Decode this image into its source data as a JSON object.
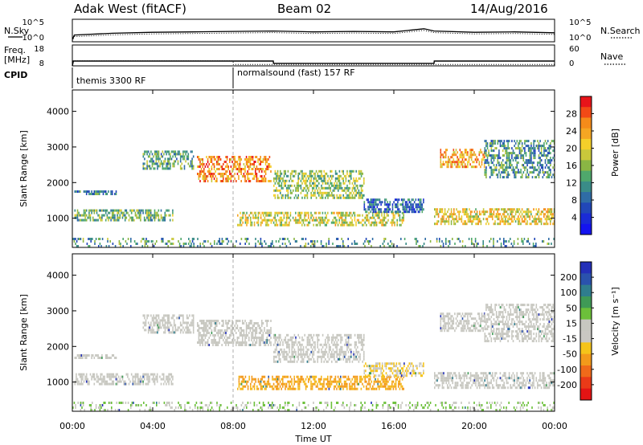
{
  "header": {
    "title": "Adak West (fitACF)",
    "beam": "Beam 02",
    "date": "14/Aug/2016"
  },
  "sky_panel": {
    "left_label": "N.Sky",
    "right_label": "N.Search",
    "left_ticks": [
      "10^5",
      "10^0"
    ],
    "right_ticks": [
      "10^5",
      "10^0"
    ]
  },
  "freq_panel": {
    "left_label_1": "Freq.",
    "left_label_2": "[MHz]",
    "right_label": "Nave",
    "left_ticks": [
      "18",
      "8"
    ],
    "right_ticks": [
      "60",
      "0"
    ]
  },
  "cpid": {
    "label": "CPID",
    "segments": [
      {
        "start_hour": 0,
        "name": "themis 3300 RF"
      },
      {
        "start_hour": 8,
        "name": "normalsound (fast) 157 RF"
      }
    ]
  },
  "power_panel": {
    "ylabel": "Slant Range [km]",
    "cbar_label": "Power [dB]",
    "cbar_ticks": [
      "28",
      "24",
      "20",
      "16",
      "12",
      "8",
      "4"
    ],
    "cbar_colors": [
      "#e8141a",
      "#f24a16",
      "#f58b1a",
      "#f5a623",
      "#f4cf2a",
      "#c9c83b",
      "#8ab644",
      "#4fa86c",
      "#3a8c88",
      "#2f6ca6",
      "#2147b8",
      "#1a2bd6",
      "#1414ef"
    ]
  },
  "velocity_panel": {
    "ylabel": "Slant Range [km]",
    "cbar_label": "Velocity [m s⁻¹]",
    "cbar_ticks": [
      "200",
      "100",
      "50",
      "15",
      "-15",
      "-50",
      "-100",
      "-200"
    ],
    "cbar_colors": [
      "#2430b8",
      "#2a52ad",
      "#2f7d8e",
      "#3f9a56",
      "#6cc03a",
      "#c7c7c0",
      "#c9c7c2",
      "#f5c41a",
      "#f39a1b",
      "#f06a1a",
      "#ea3a18",
      "#e31414"
    ]
  },
  "xaxis": {
    "label": "Time UT",
    "ticks": [
      "00:00",
      "04:00",
      "08:00",
      "12:00",
      "16:00",
      "20:00",
      "00:00"
    ]
  },
  "chart_data": [
    {
      "type": "line",
      "name": "noise",
      "x_range_hours": [
        0,
        24
      ],
      "series": [
        {
          "name": "N.Sky",
          "x": [
            0,
            0.1,
            2,
            4,
            6,
            8,
            10,
            12,
            14,
            16,
            17.5,
            18,
            20,
            22,
            24
          ],
          "y": [
            0.5,
            1.5,
            1.9,
            2.1,
            2.2,
            2.3,
            2.4,
            2.2,
            2.3,
            2.2,
            2.9,
            2.4,
            2.1,
            2.2,
            2.0
          ]
        }
      ],
      "ylim_log10": [
        0,
        5
      ]
    },
    {
      "type": "line",
      "name": "frequency_nave",
      "x_range_hours": [
        0,
        24
      ],
      "series": [
        {
          "name": "Freq.",
          "x": [
            0,
            0.05,
            10,
            10.01,
            18,
            18.01,
            24
          ],
          "y": [
            8,
            10.3,
            10.3,
            9.2,
            9.2,
            10.3,
            10.3
          ]
        },
        {
          "name": "Nave",
          "x": [
            0,
            8,
            8.01,
            24
          ],
          "y": [
            14,
            14,
            4,
            4
          ]
        }
      ],
      "ylim_freq": [
        8,
        18
      ],
      "ylim_nave": [
        0,
        60
      ]
    },
    {
      "type": "heatmap",
      "name": "power",
      "x_range_hours": [
        0,
        24
      ],
      "y_range_km": [
        180,
        4600
      ],
      "yticks": [
        1000,
        2000,
        3000,
        4000
      ],
      "regions": [
        {
          "t0": 0.1,
          "t1": 5.0,
          "r0": 950,
          "r1": 1250,
          "level": 0.45
        },
        {
          "t0": 0.1,
          "t1": 2.2,
          "r0": 1680,
          "r1": 1780,
          "level": 0.3
        },
        {
          "t0": 3.5,
          "t1": 6.0,
          "r0": 2400,
          "r1": 2900,
          "level": 0.4
        },
        {
          "t0": 6.2,
          "t1": 9.9,
          "r0": 2050,
          "r1": 2750,
          "level": 0.8
        },
        {
          "t0": 8.2,
          "t1": 16.5,
          "r0": 780,
          "r1": 1180,
          "level": 0.6
        },
        {
          "t0": 10.0,
          "t1": 14.5,
          "r0": 1550,
          "r1": 2350,
          "level": 0.5
        },
        {
          "t0": 14.5,
          "t1": 17.5,
          "r0": 1200,
          "r1": 1550,
          "level": 0.25
        },
        {
          "t0": 18.0,
          "t1": 24.0,
          "r0": 850,
          "r1": 1280,
          "level": 0.65
        },
        {
          "t0": 18.3,
          "t1": 20.5,
          "r0": 2450,
          "r1": 2950,
          "level": 0.75
        },
        {
          "t0": 20.5,
          "t1": 24.0,
          "r0": 2150,
          "r1": 3200,
          "level": 0.35
        },
        {
          "t0": 0.0,
          "t1": 24.0,
          "r0": 180,
          "r1": 450,
          "level": 0.35
        }
      ]
    },
    {
      "type": "heatmap",
      "name": "velocity",
      "x_range_hours": [
        0,
        24
      ],
      "y_range_km": [
        180,
        4600
      ],
      "yticks": [
        1000,
        2000,
        3000,
        4000
      ],
      "regions": [
        {
          "t0": 0.1,
          "t1": 5.0,
          "r0": 950,
          "r1": 1250,
          "v": 0
        },
        {
          "t0": 0.1,
          "t1": 2.2,
          "r0": 1680,
          "r1": 1780,
          "v": 0
        },
        {
          "t0": 3.5,
          "t1": 6.0,
          "r0": 2400,
          "r1": 2900,
          "v": 0
        },
        {
          "t0": 6.2,
          "t1": 9.9,
          "r0": 2050,
          "r1": 2750,
          "v": 0
        },
        {
          "t0": 8.2,
          "t1": 16.5,
          "r0": 780,
          "r1": 1180,
          "v": -40
        },
        {
          "t0": 10.0,
          "t1": 14.5,
          "r0": 1550,
          "r1": 2350,
          "v": 0
        },
        {
          "t0": 14.5,
          "t1": 17.5,
          "r0": 1200,
          "r1": 1550,
          "v": -20
        },
        {
          "t0": 18.0,
          "t1": 24.0,
          "r0": 850,
          "r1": 1280,
          "v": 0
        },
        {
          "t0": 18.3,
          "t1": 20.5,
          "r0": 2450,
          "r1": 2950,
          "v": 0
        },
        {
          "t0": 20.5,
          "t1": 24.0,
          "r0": 2150,
          "r1": 3200,
          "v": 0
        },
        {
          "t0": 0.0,
          "t1": 24.0,
          "r0": 180,
          "r1": 450,
          "v": 20
        }
      ]
    }
  ]
}
